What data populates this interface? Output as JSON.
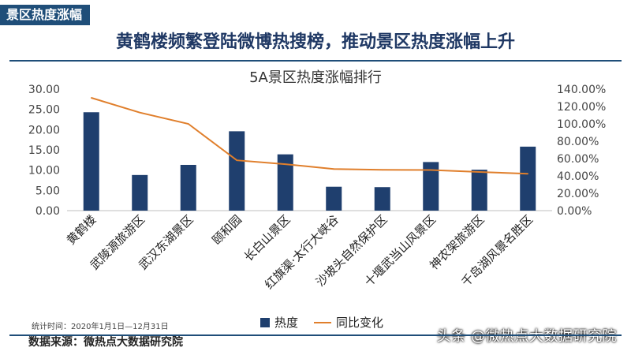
{
  "tag": "景区热度涨幅",
  "headline": "黄鹤楼频繁登陆微博热搜榜，推动景区热度涨幅上升",
  "footer": {
    "stat_time": "统计时间：2020年1月1日—12月31日",
    "source": "数据来源：微热点大数据研究院",
    "watermark": "头条 @微热点大数据研究院"
  },
  "colors": {
    "bar": "#1f3f6e",
    "line": "#e07f2c",
    "accent": "#1f4e79"
  },
  "chart_data": {
    "type": "bar",
    "title": "5A景区热度涨幅排行",
    "categories": [
      "黄鹤楼",
      "武陵源旅游区",
      "武汉东湖景区",
      "颐和园",
      "长白山景区",
      "红旗渠·太行大峡谷",
      "沙坡头自然保护区",
      "十堰武当山风景区",
      "神农架旅游区",
      "千岛湖风景名胜区"
    ],
    "series": [
      {
        "name": "热度",
        "type": "bar",
        "axis": "left",
        "values": [
          24.3,
          8.8,
          11.3,
          19.6,
          13.9,
          5.9,
          5.8,
          12.0,
          10.1,
          15.8
        ]
      },
      {
        "name": "同比变化",
        "type": "line",
        "axis": "right",
        "values": [
          130.0,
          113.0,
          100.0,
          58.0,
          53.5,
          48.0,
          47.0,
          46.8,
          44.5,
          42.5
        ]
      }
    ],
    "y_left": {
      "ylim": [
        0,
        30
      ],
      "ticks": [
        "0.00",
        "5.00",
        "10.00",
        "15.00",
        "20.00",
        "25.00",
        "30.00"
      ]
    },
    "y_right": {
      "ylim": [
        0,
        140
      ],
      "ticks": [
        "0.00%",
        "20.00%",
        "40.00%",
        "60.00%",
        "80.00%",
        "100.00%",
        "120.00%",
        "140.00%"
      ]
    },
    "grid": false,
    "legend": "bottom"
  }
}
